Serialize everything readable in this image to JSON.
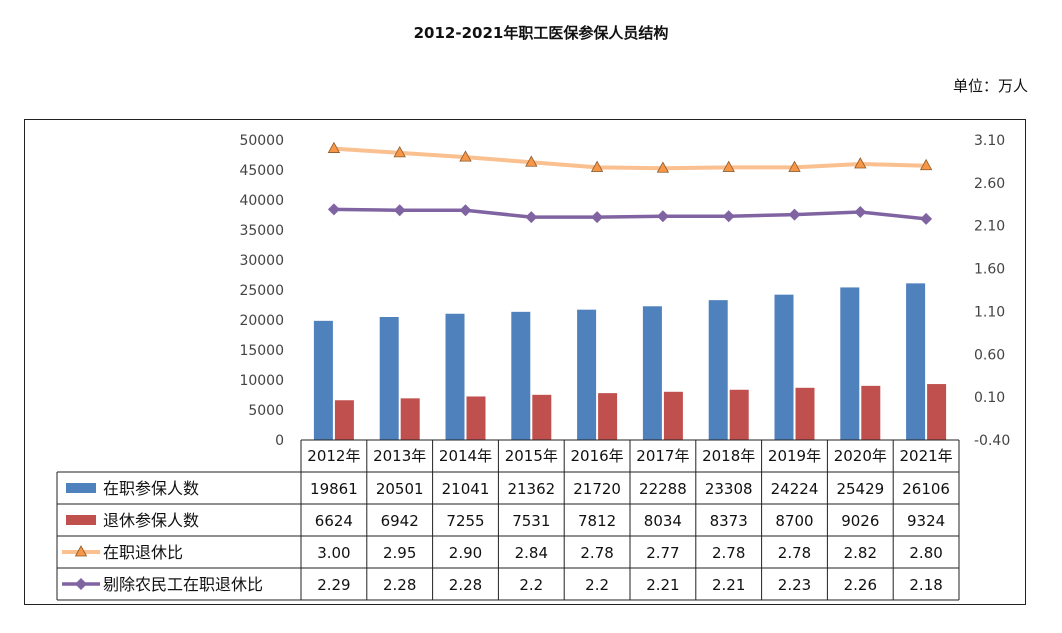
{
  "title": "2012-2021年职工医保参保人员结构",
  "unit_label": "单位：万人",
  "colors": {
    "active": "#4f81bd",
    "retired": "#c0504d",
    "ratio": "#fac090",
    "ratio_marker": "#f79646",
    "excl": "#8064a2"
  },
  "chart_data": {
    "type": "bar",
    "categories": [
      "2012年",
      "2013年",
      "2014年",
      "2015年",
      "2016年",
      "2017年",
      "2018年",
      "2019年",
      "2020年",
      "2021年"
    ],
    "y_left": {
      "ylim": [
        0,
        50000
      ],
      "ticks": [
        "0",
        "5000",
        "10000",
        "15000",
        "20000",
        "25000",
        "30000",
        "35000",
        "40000",
        "45000",
        "50000"
      ]
    },
    "y_right": {
      "ylim": [
        -0.4,
        3.1
      ],
      "ticks": [
        "-0.40",
        "0.10",
        "0.60",
        "1.10",
        "1.60",
        "2.10",
        "2.60",
        "3.10"
      ]
    },
    "series": [
      {
        "name": "在职参保人数",
        "type": "bar",
        "axis": "left",
        "values": [
          19861,
          20501,
          21041,
          21362,
          21720,
          22288,
          23308,
          24224,
          25429,
          26106
        ],
        "labels": [
          "19861",
          "20501",
          "21041",
          "21362",
          "21720",
          "22288",
          "23308",
          "24224",
          "25429",
          "26106"
        ]
      },
      {
        "name": "退休参保人数",
        "type": "bar",
        "axis": "left",
        "values": [
          6624,
          6942,
          7255,
          7531,
          7812,
          8034,
          8373,
          8700,
          9026,
          9324
        ],
        "labels": [
          "6624",
          "6942",
          "7255",
          "7531",
          "7812",
          "8034",
          "8373",
          "8700",
          "9026",
          "9324"
        ]
      },
      {
        "name": "在职退休比",
        "type": "line",
        "axis": "right",
        "marker": "triangle",
        "values": [
          3.0,
          2.95,
          2.9,
          2.84,
          2.78,
          2.77,
          2.78,
          2.78,
          2.82,
          2.8
        ],
        "labels": [
          "3.00",
          "2.95",
          "2.90",
          "2.84",
          "2.78",
          "2.77",
          "2.78",
          "2.78",
          "2.82",
          "2.80"
        ]
      },
      {
        "name": "剔除农民工在职退休比",
        "type": "line",
        "axis": "right",
        "marker": "diamond",
        "values": [
          2.29,
          2.28,
          2.28,
          2.2,
          2.2,
          2.21,
          2.21,
          2.23,
          2.26,
          2.18
        ],
        "labels": [
          "2.29",
          "2.28",
          "2.28",
          "2.2",
          "2.2",
          "2.21",
          "2.21",
          "2.23",
          "2.26",
          "2.18"
        ]
      }
    ],
    "grid": false,
    "legend": "data-table"
  }
}
